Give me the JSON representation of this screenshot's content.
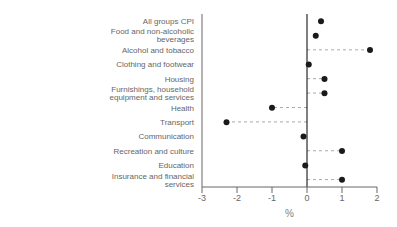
{
  "chart_data": {
    "type": "scatter",
    "orientation": "horizontal",
    "categories": [
      "All groups CPI",
      "Food and non-alcoholic beverages",
      "Alcohol and tobacco",
      "Clothing and footwear",
      "Housing",
      "Furnishings, household equipment and services",
      "Health",
      "Transport",
      "Communication",
      "Recreation and culture",
      "Education",
      "Insurance and financial services"
    ],
    "series": [
      {
        "type": "line",
        "line_style": "dashed",
        "color": "#aaaaaa",
        "values": [
          null,
          null,
          1.8,
          null,
          0.5,
          0.5,
          -1.0,
          -2.3,
          null,
          1.0,
          null,
          1.0
        ]
      },
      {
        "type": "scatter",
        "marker": "circle",
        "color": "#1a1a1a",
        "values": [
          0.4,
          0.25,
          1.8,
          0.05,
          0.5,
          0.5,
          -1.0,
          -2.3,
          -0.1,
          1.0,
          -0.05,
          1.0
        ]
      }
    ],
    "xlabel": "%",
    "xlim": [
      -3,
      2
    ],
    "xticks": [
      -3,
      -2,
      -1,
      0,
      1,
      2
    ],
    "grid": false
  }
}
